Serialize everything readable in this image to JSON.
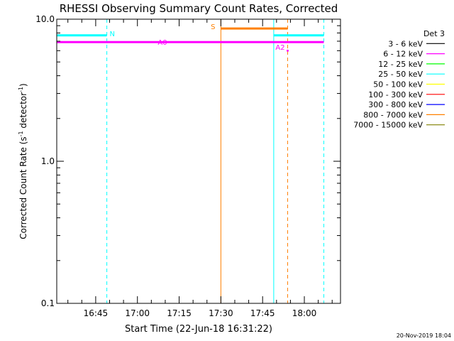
{
  "chart_data": {
    "type": "line",
    "title": "RHESSI Observing Summary Count Rates, Corrected",
    "xlabel": "Start Time (22-Jun-18 16:31:22)",
    "ylabel_main": "Corrected Count Rate (s",
    "ylabel_sup1": "-1",
    "ylabel_mid": " detector",
    "ylabel_sup2": "-1",
    "ylabel_end": ")",
    "y_scale": "log",
    "ylim": [
      0.1,
      10.0
    ],
    "y_ticks": [
      {
        "value": 0.1,
        "label": "0.1"
      },
      {
        "value": 1.0,
        "label": "1.0"
      },
      {
        "value": 10.0,
        "label": "10.0"
      }
    ],
    "xlim": [
      "16:31",
      "18:13"
    ],
    "x_ticks": [
      {
        "time": "16:45",
        "label": "16:45"
      },
      {
        "time": "17:00",
        "label": "17:00"
      },
      {
        "time": "17:15",
        "label": "17:15"
      },
      {
        "time": "17:30",
        "label": "17:30"
      },
      {
        "time": "17:45",
        "label": "17:45"
      },
      {
        "time": "18:00",
        "label": "18:00"
      }
    ],
    "legend": {
      "placement": "right",
      "title": "Det 3",
      "entries": [
        {
          "label": "3 - 6 keV",
          "color": "#000000"
        },
        {
          "label": "6 - 12 keV",
          "color": "#ff00ff"
        },
        {
          "label": "12 - 25 keV",
          "color": "#00ff00"
        },
        {
          "label": "25 - 50 keV",
          "color": "#00ffff"
        },
        {
          "label": "50 - 100 keV",
          "color": "#ffff00"
        },
        {
          "label": "100 - 300 keV",
          "color": "#ff0000"
        },
        {
          "label": "300 - 800 keV",
          "color": "#0000ff"
        },
        {
          "label": "800 - 7000 keV",
          "color": "#ff8000"
        },
        {
          "label": "7000 - 15000 keV",
          "color": "#808000"
        }
      ]
    },
    "segments": [
      {
        "t_start": "16:31",
        "t_end": "16:49",
        "value": 7.7,
        "color": "#00ffff",
        "width": 3
      },
      {
        "t_start": "17:49",
        "t_end": "18:07",
        "value": 7.7,
        "color": "#00ffff",
        "width": 3
      },
      {
        "t_start": "17:30",
        "t_end": "17:54",
        "value": 8.6,
        "color": "#ff8000",
        "width": 3
      },
      {
        "t_start": "16:31",
        "t_end": "18:07",
        "value": 6.9,
        "color": "#ff00ff",
        "width": 3
      }
    ],
    "vlines": [
      {
        "time": "16:31",
        "color": "#00ffff",
        "dashed": false
      },
      {
        "time": "16:49",
        "color": "#00ffff",
        "dashed": true
      },
      {
        "time": "17:30",
        "color": "#ff8000",
        "dashed": false
      },
      {
        "time": "17:49",
        "color": "#00ffff",
        "dashed": false
      },
      {
        "time": "17:54",
        "color": "#ff8000",
        "dashed": true
      },
      {
        "time": "18:07",
        "color": "#00ffff",
        "dashed": true
      }
    ],
    "annotations": [
      {
        "label": "N",
        "time": "16:50",
        "value": 7.6,
        "color": "#00ffff",
        "anchor": "start"
      },
      {
        "label": "S",
        "time": "17:28",
        "value": 8.5,
        "color": "#ff8000",
        "anchor": "end"
      },
      {
        "label": "A0",
        "time": "17:09",
        "value": 6.6,
        "color": "#ff00ff",
        "anchor": "middle"
      },
      {
        "label": "A2",
        "time": "17:53",
        "value": 6.1,
        "color": "#ff00ff",
        "anchor": "end"
      }
    ],
    "markers": [
      {
        "time": "17:54",
        "value": 6.0,
        "color": "#ff00ff"
      }
    ],
    "footer_date": "20-Nov-2019 18:04"
  }
}
